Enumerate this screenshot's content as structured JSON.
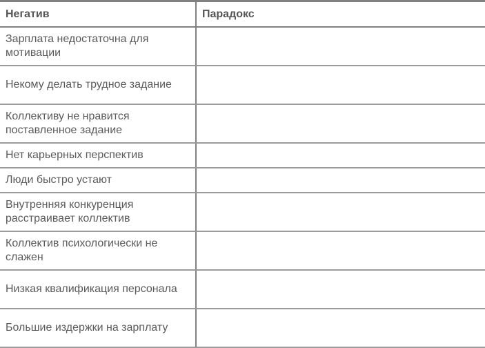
{
  "table": {
    "headers": [
      "Негатив",
      "Парадокс"
    ],
    "rows": [
      {
        "negative": "Зарплата недостаточна для мотивации",
        "paradox": ""
      },
      {
        "negative": "Некому делать трудное задание",
        "paradox": ""
      },
      {
        "negative": "Коллективу не нравится поставленное задание",
        "paradox": ""
      },
      {
        "negative": "Нет карьерных перспектив",
        "paradox": ""
      },
      {
        "negative": "Люди быстро устают",
        "paradox": ""
      },
      {
        "negative": "Внутренняя конкуренция расстраивает коллектив",
        "paradox": ""
      },
      {
        "negative": "Коллектив психологически не слажен",
        "paradox": ""
      },
      {
        "negative": "Низкая квалификация персонала",
        "paradox": ""
      },
      {
        "negative": "Большие издержки на зарплату",
        "paradox": ""
      }
    ]
  }
}
